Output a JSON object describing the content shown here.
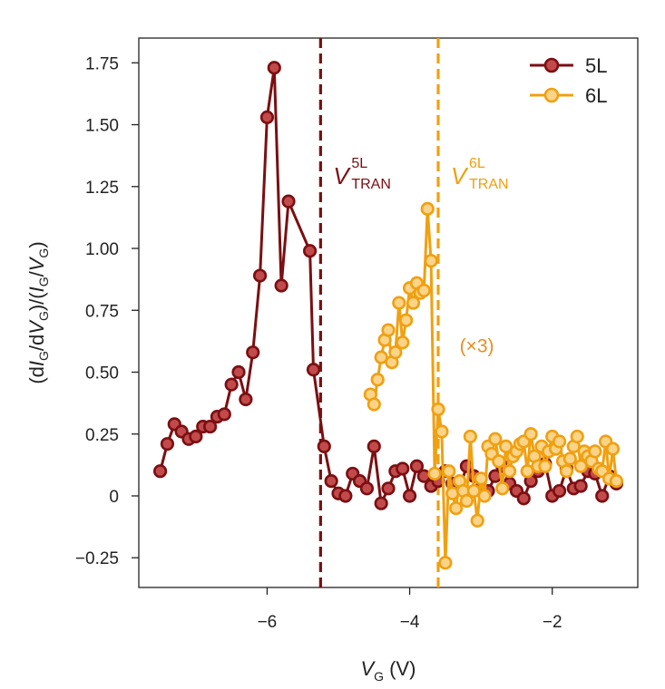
{
  "chart_data": {
    "type": "line",
    "xlabel": "VG (V)",
    "xlabel_parts": {
      "var": "V",
      "sub": "G",
      "unit": " (V)"
    },
    "ylabel": "(dIG/dVG)/(IG/VG)",
    "xlim": [
      -7.8,
      -0.8
    ],
    "ylim": [
      -0.37,
      1.85
    ],
    "xticks": [
      -6,
      -4,
      -2
    ],
    "xtick_labels": [
      "−6",
      "−4",
      "−2"
    ],
    "yticks": [
      -0.25,
      0,
      0.25,
      0.5,
      0.75,
      1.0,
      1.25,
      1.5,
      1.75
    ],
    "ytick_labels": [
      "−0.25",
      "0",
      "0.25",
      "0.50",
      "0.75",
      "1.00",
      "1.25",
      "1.50",
      "1.75"
    ],
    "grid": false,
    "legend_position": "top-right",
    "series": [
      {
        "name": "5L",
        "line_color": "#7a0f12",
        "marker_fill": "#c24a4a",
        "x": [
          -7.5,
          -7.4,
          -7.3,
          -7.2,
          -7.1,
          -7.0,
          -6.9,
          -6.8,
          -6.7,
          -6.6,
          -6.5,
          -6.4,
          -6.3,
          -6.2,
          -6.1,
          -6.0,
          -5.9,
          -5.8,
          -5.7,
          -5.4,
          -5.35,
          -5.2,
          -5.1,
          -5.0,
          -4.9,
          -4.8,
          -4.7,
          -4.6,
          -4.5,
          -4.4,
          -4.3,
          -4.2,
          -4.1,
          -4.0,
          -3.9,
          -3.8,
          -3.7,
          -3.6,
          -3.5,
          -3.4,
          -3.3,
          -3.2,
          -3.1,
          -3.0,
          -2.9,
          -2.8,
          -2.7,
          -2.6,
          -2.5,
          -2.4,
          -2.3,
          -2.2,
          -2.1,
          -2.0,
          -1.9,
          -1.8,
          -1.7,
          -1.6,
          -1.5,
          -1.4,
          -1.3,
          -1.2,
          -1.1
        ],
        "y": [
          0.1,
          0.21,
          0.29,
          0.26,
          0.23,
          0.24,
          0.28,
          0.28,
          0.32,
          0.33,
          0.45,
          0.5,
          0.39,
          0.58,
          0.89,
          1.53,
          1.73,
          0.85,
          1.19,
          0.99,
          0.51,
          0.2,
          0.06,
          0.01,
          0.0,
          0.09,
          0.06,
          0.03,
          0.2,
          -0.03,
          0.03,
          0.1,
          0.11,
          0.0,
          0.12,
          0.08,
          0.04,
          0.06,
          0.1,
          0.05,
          0.03,
          0.12,
          0.08,
          0.03,
          0.02,
          0.08,
          0.12,
          0.05,
          0.02,
          -0.01,
          0.06,
          0.1,
          0.13,
          0.0,
          0.02,
          0.11,
          0.03,
          0.04,
          0.1,
          0.09,
          0.0,
          0.08,
          0.05
        ]
      },
      {
        "name": "6L",
        "line_color": "#f0a010",
        "marker_fill": "#fbd48a",
        "x": [
          -4.55,
          -4.5,
          -4.45,
          -4.4,
          -4.35,
          -4.3,
          -4.25,
          -4.2,
          -4.15,
          -4.1,
          -4.05,
          -4.0,
          -3.95,
          -3.9,
          -3.85,
          -3.8,
          -3.75,
          -3.7,
          -3.65,
          -3.6,
          -3.55,
          -3.5,
          -3.45,
          -3.4,
          -3.35,
          -3.3,
          -3.25,
          -3.2,
          -3.15,
          -3.1,
          -3.05,
          -3.0,
          -2.95,
          -2.9,
          -2.85,
          -2.8,
          -2.75,
          -2.7,
          -2.65,
          -2.6,
          -2.55,
          -2.5,
          -2.45,
          -2.4,
          -2.35,
          -2.3,
          -2.25,
          -2.2,
          -2.15,
          -2.1,
          -2.05,
          -2.0,
          -1.95,
          -1.9,
          -1.85,
          -1.8,
          -1.75,
          -1.7,
          -1.65,
          -1.6,
          -1.55,
          -1.5,
          -1.45,
          -1.4,
          -1.35,
          -1.3,
          -1.25,
          -1.2,
          -1.15,
          -1.1
        ],
        "y": [
          0.41,
          0.37,
          0.47,
          0.56,
          0.63,
          0.67,
          0.54,
          0.58,
          0.78,
          0.62,
          0.71,
          0.84,
          0.78,
          0.86,
          0.82,
          0.83,
          1.16,
          0.95,
          0.09,
          0.35,
          0.26,
          -0.27,
          0.1,
          0.01,
          -0.05,
          0.06,
          0.02,
          -0.02,
          0.24,
          0.02,
          -0.1,
          0.07,
          0.0,
          0.2,
          0.17,
          0.23,
          0.14,
          0.03,
          0.2,
          0.1,
          0.16,
          0.18,
          0.21,
          0.22,
          0.1,
          0.25,
          0.16,
          0.12,
          0.2,
          0.12,
          0.18,
          0.24,
          0.19,
          0.22,
          0.14,
          0.1,
          0.15,
          0.2,
          0.24,
          0.12,
          0.18,
          0.16,
          0.14,
          0.18,
          0.11,
          0.1,
          0.22,
          0.07,
          0.19,
          0.06
        ]
      }
    ],
    "vlines": [
      {
        "x": -5.25,
        "color": "#7a0f12",
        "style": "dashed",
        "label_main": "V",
        "label_sup": "5L",
        "label_sub": "TRAN"
      },
      {
        "x": -3.6,
        "color": "#f0a010",
        "style": "dashed",
        "label_main": "V",
        "label_sup": "6L",
        "label_sub": "TRAN"
      }
    ],
    "annotations": [
      {
        "text": "(×3)",
        "x": -3.3,
        "y": 0.58,
        "color": "#e58f22"
      }
    ]
  }
}
